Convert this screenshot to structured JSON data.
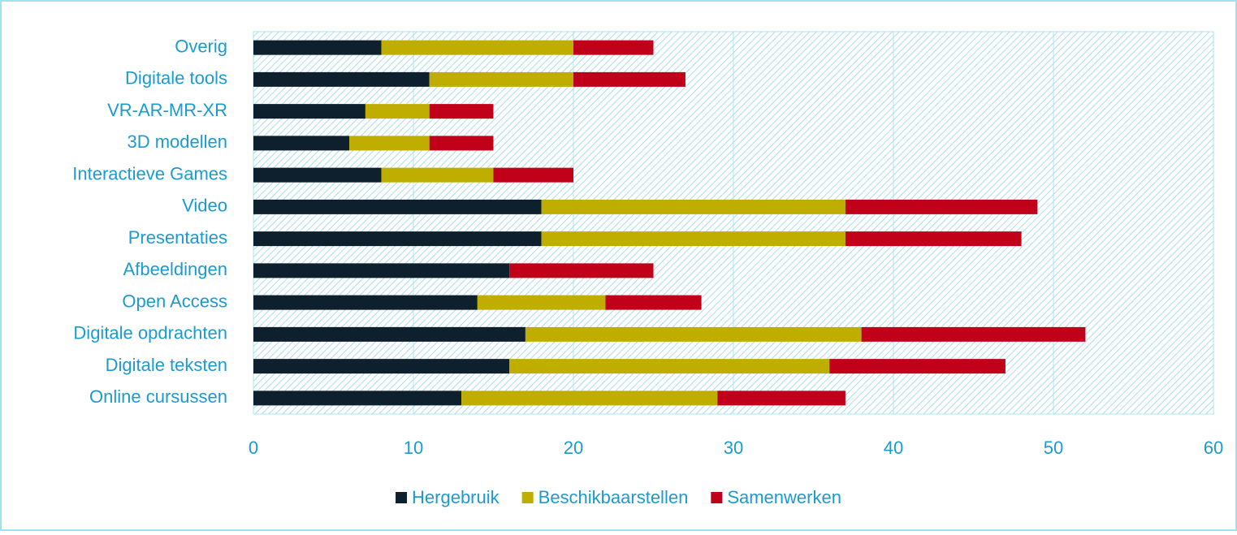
{
  "chart_data": {
    "type": "stacked_barh",
    "categories": [
      "Overig",
      "Digitale tools",
      "VR-AR-MR-XR",
      "3D modellen",
      "Interactieve Games",
      "Video",
      "Presentaties",
      "Afbeeldingen",
      "Open Access",
      "Digitale opdrachten",
      "Digitale teksten",
      "Online cursussen"
    ],
    "series": [
      {
        "name": "Hergebruik",
        "color": "#0e1f2d",
        "values": [
          8,
          11,
          7,
          6,
          8,
          18,
          18,
          16,
          14,
          17,
          16,
          13
        ]
      },
      {
        "name": "Beschikbaarstellen",
        "color": "#bfae00",
        "values": [
          12,
          9,
          4,
          5,
          7,
          19,
          19,
          0,
          8,
          21,
          20,
          16
        ]
      },
      {
        "name": "Samenwerken",
        "color": "#c1001a",
        "values": [
          5,
          7,
          4,
          4,
          5,
          12,
          11,
          9,
          6,
          14,
          11,
          8
        ]
      }
    ],
    "xlim": [
      0,
      60
    ],
    "xticks": [
      0,
      10,
      20,
      30,
      40,
      50,
      60
    ],
    "grid": true,
    "legend": "bottom"
  }
}
